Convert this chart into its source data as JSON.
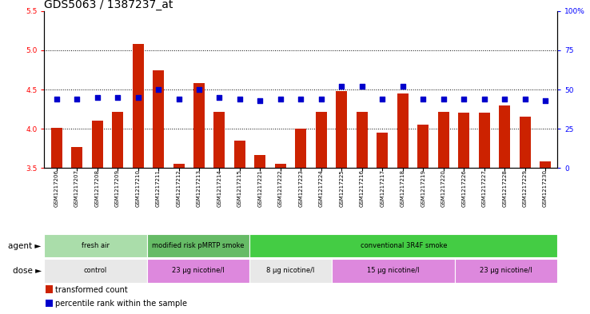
{
  "title": "GDS5063 / 1387237_at",
  "samples": [
    "GSM1217206",
    "GSM1217207",
    "GSM1217208",
    "GSM1217209",
    "GSM1217210",
    "GSM1217211",
    "GSM1217212",
    "GSM1217213",
    "GSM1217214",
    "GSM1217215",
    "GSM1217221",
    "GSM1217222",
    "GSM1217223",
    "GSM1217224",
    "GSM1217225",
    "GSM1217216",
    "GSM1217217",
    "GSM1217218",
    "GSM1217219",
    "GSM1217220",
    "GSM1217226",
    "GSM1217227",
    "GSM1217228",
    "GSM1217229",
    "GSM1217230"
  ],
  "bar_values": [
    4.01,
    3.77,
    4.1,
    4.22,
    5.08,
    4.74,
    3.55,
    4.58,
    4.22,
    3.85,
    3.67,
    3.55,
    4.0,
    4.22,
    4.48,
    4.22,
    3.95,
    4.45,
    4.05,
    4.22,
    4.2,
    4.2,
    4.3,
    4.15,
    3.58
  ],
  "dot_values": [
    44,
    44,
    45,
    45,
    45,
    50,
    44,
    50,
    45,
    44,
    43,
    44,
    44,
    44,
    52,
    52,
    44,
    52,
    44,
    44,
    44,
    44,
    44,
    44,
    43
  ],
  "ylim_left": [
    3.5,
    5.5
  ],
  "ylim_right": [
    0,
    100
  ],
  "yticks_left": [
    3.5,
    4.0,
    4.5,
    5.0,
    5.5
  ],
  "yticks_right": [
    0,
    25,
    50,
    75,
    100
  ],
  "hlines": [
    4.0,
    4.5,
    5.0
  ],
  "bar_color": "#cc2200",
  "dot_color": "#0000cc",
  "bar_bottom": 3.5,
  "agent_groups": [
    {
      "label": "fresh air",
      "start": 0,
      "end": 5,
      "color": "#aaddaa"
    },
    {
      "label": "modified risk pMRTP smoke",
      "start": 5,
      "end": 10,
      "color": "#66bb66"
    },
    {
      "label": "conventional 3R4F smoke",
      "start": 10,
      "end": 25,
      "color": "#44cc44"
    }
  ],
  "dose_groups": [
    {
      "label": "control",
      "start": 0,
      "end": 5,
      "color": "#e8e8e8"
    },
    {
      "label": "23 μg nicotine/l",
      "start": 5,
      "end": 10,
      "color": "#dd88dd"
    },
    {
      "label": "8 μg nicotine/l",
      "start": 10,
      "end": 14,
      "color": "#e8e8e8"
    },
    {
      "label": "15 μg nicotine/l",
      "start": 14,
      "end": 20,
      "color": "#dd88dd"
    },
    {
      "label": "23 μg nicotine/l",
      "start": 20,
      "end": 25,
      "color": "#dd88dd"
    }
  ],
  "legend_items": [
    {
      "label": "transformed count",
      "color": "#cc2200"
    },
    {
      "label": "percentile rank within the sample",
      "color": "#0000cc"
    }
  ],
  "agent_label": "agent",
  "dose_label": "dose",
  "title_fontsize": 10,
  "tick_fontsize": 6.5,
  "label_fontsize": 7.5,
  "xtick_fontsize": 5.0
}
